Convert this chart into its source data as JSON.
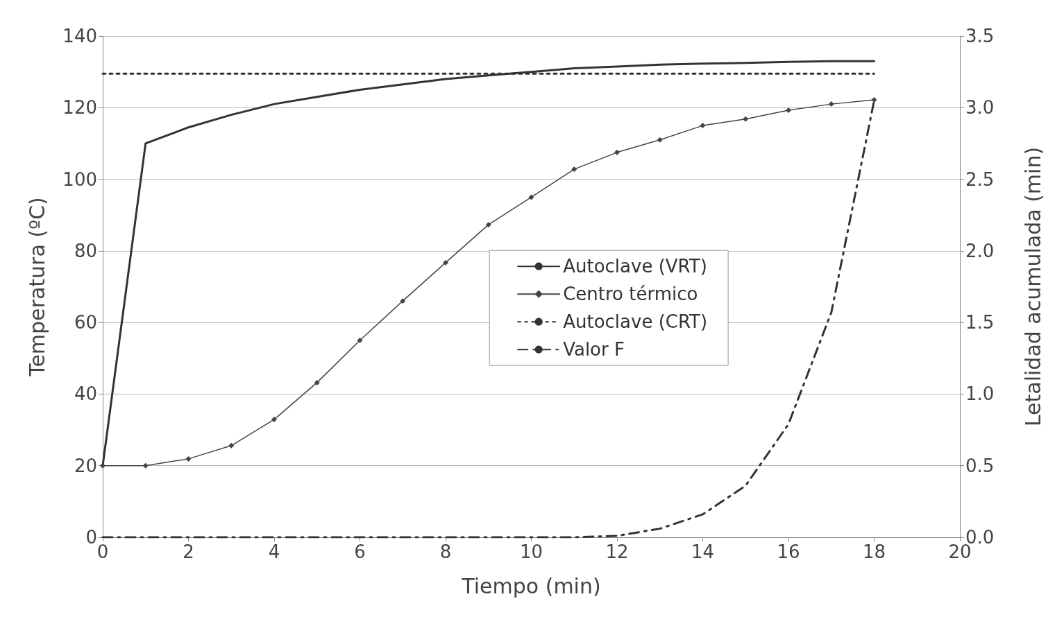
{
  "chart_data": {
    "type": "line",
    "xlabel": "Tiempo (min)",
    "ylabel": "Temperatura (ºC)",
    "y2label": "Letalidad acumulada (min)",
    "xlim": [
      0,
      20
    ],
    "xticks": [
      0,
      2,
      4,
      6,
      8,
      10,
      12,
      14,
      16,
      18,
      20
    ],
    "ylim": [
      0,
      140
    ],
    "yticks": [
      0,
      20,
      40,
      60,
      80,
      100,
      120,
      140
    ],
    "y2lim": [
      0,
      3.5
    ],
    "y2ticks": [
      {
        "value": 0,
        "label": "0.0"
      },
      0.5,
      {
        "value": 1,
        "label": "1.0"
      },
      1.5,
      {
        "value": 2,
        "label": "2.0"
      },
      2.5,
      {
        "value": 3,
        "label": "3.0"
      },
      3.5
    ],
    "grid": "y",
    "legend": "center",
    "series": [
      {
        "name": "Autoclave (VRT)",
        "color": "#333333",
        "line_style": "solid",
        "marker": "none",
        "x": [
          0,
          1,
          2,
          3,
          4,
          5,
          6,
          7,
          8,
          9,
          10,
          11,
          12,
          13,
          14,
          15,
          16,
          17,
          18
        ],
        "values": [
          20,
          110,
          114.5,
          118,
          121,
          123,
          125,
          126.5,
          128,
          129,
          130,
          131,
          131.5,
          132,
          132.3,
          132.5,
          132.8,
          133,
          133
        ]
      },
      {
        "name": "Centro térmico",
        "color": "#444444",
        "line_style": "solid",
        "marker": "diamond",
        "x": [
          0,
          1,
          2,
          3,
          4,
          5,
          6,
          7,
          8,
          9,
          10,
          11,
          12,
          13,
          14,
          15,
          16,
          17,
          18
        ],
        "values": [
          20,
          20,
          21.9,
          25.6,
          32.9,
          43.2,
          55,
          66,
          76.7,
          87.3,
          95,
          102.8,
          107.5,
          111,
          115,
          116.8,
          119.3,
          121,
          122.2
        ]
      },
      {
        "name": "Autoclave (CRT)",
        "color": "#333333",
        "line_style": "dotted",
        "marker": "none",
        "x": [
          0,
          18
        ],
        "values": [
          129.5,
          129.5
        ]
      },
      {
        "name": "Valor F",
        "color": "#333333",
        "line_style": "dashed",
        "marker": "none",
        "axis": "y2",
        "x": [
          0,
          1,
          2,
          3,
          4,
          5,
          6,
          7,
          8,
          9,
          10,
          11,
          12,
          13,
          14,
          15,
          16,
          17,
          18
        ],
        "values": [
          0,
          0,
          0,
          0,
          0,
          0,
          0,
          0,
          0,
          0,
          0,
          0,
          0.01,
          0.06,
          0.16,
          0.36,
          0.79,
          1.57,
          3.05
        ]
      }
    ]
  }
}
